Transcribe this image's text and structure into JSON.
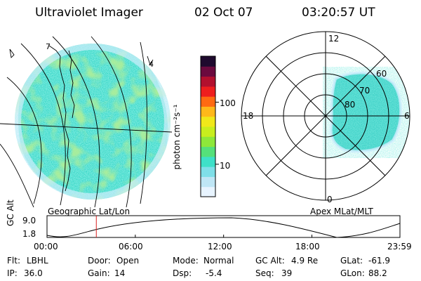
{
  "header": {
    "title": "Ultraviolet Imager",
    "date": "02 Oct 07",
    "time": "03:20:57 UT"
  },
  "left_panel": {
    "caption": "Geographic Lat/Lon",
    "coast_label_a": "7",
    "coast_label_b": "4"
  },
  "colorbar": {
    "unit_label": "photon cm⁻²s⁻¹",
    "ticks": [
      {
        "value": 100,
        "label": "100"
      },
      {
        "value": 10,
        "label": "10"
      }
    ],
    "range": [
      3,
      550
    ],
    "colors": [
      "#e8f4ff",
      "#bfe6f5",
      "#7fdfe8",
      "#3ee0c8",
      "#55e07a",
      "#8ee83a",
      "#c8ee1e",
      "#f0e81a",
      "#ffb81a",
      "#ff6a12",
      "#ee1e1e",
      "#b2102e",
      "#6b0a3e",
      "#1e0a2e"
    ]
  },
  "polar_plot": {
    "caption": "Apex MLat/MLT",
    "hour_labels": {
      "top": "12",
      "left": "18",
      "right": "6",
      "bottom": "0"
    },
    "lat_labels": [
      "80",
      "70",
      "60"
    ]
  },
  "altitude_plot": {
    "ylabel": "GC Alt",
    "y_ticks": [
      "9.0",
      "1.8"
    ],
    "x_ticks": [
      "00:00",
      "06:00",
      "12:00",
      "18:00",
      "23:59"
    ],
    "marker_time_hours": 3.35
  },
  "footer": {
    "row1": [
      {
        "key": "Flt:",
        "value": "LBHL"
      },
      {
        "key": "Door:",
        "value": "Open"
      },
      {
        "key": "Mode:",
        "value": "Normal"
      },
      {
        "key": "GC Alt:",
        "value": "4.9 Re"
      },
      {
        "key": "GLat:",
        "value": "-61.9"
      }
    ],
    "row2": [
      {
        "key": "IP:",
        "value": "36.0"
      },
      {
        "key": "Gain:",
        "value": "14"
      },
      {
        "key": "Dsp:",
        "value": "-5.4"
      },
      {
        "key": "Seq:",
        "value": "39"
      },
      {
        "key": "GLon:",
        "value": "88.2"
      }
    ]
  },
  "colors": {
    "aurora_main": "#3fd2c8",
    "aurora_green": "#6fdc4a",
    "marker": "#d82020"
  }
}
